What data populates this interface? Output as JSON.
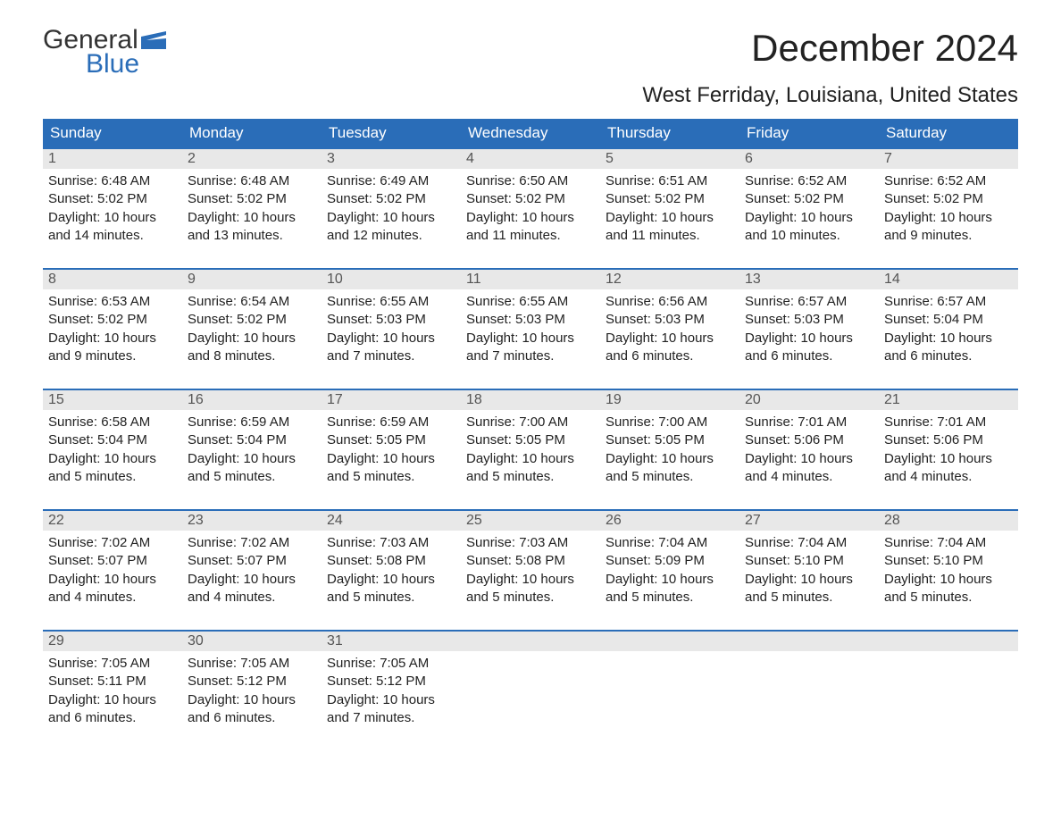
{
  "logo": {
    "word1": "General",
    "word2": "Blue",
    "icon_color": "#2a6db8"
  },
  "title": "December 2024",
  "location": "West Ferriday, Louisiana, United States",
  "colors": {
    "header_bg": "#2a6db8",
    "header_fg": "#ffffff",
    "daynum_bg": "#e8e8e8",
    "text": "#222222",
    "rule": "#2a6db8"
  },
  "day_headers": [
    "Sunday",
    "Monday",
    "Tuesday",
    "Wednesday",
    "Thursday",
    "Friday",
    "Saturday"
  ],
  "weeks": [
    [
      {
        "n": "1",
        "sr": "6:48 AM",
        "ss": "5:02 PM",
        "dl": "10 hours and 14 minutes."
      },
      {
        "n": "2",
        "sr": "6:48 AM",
        "ss": "5:02 PM",
        "dl": "10 hours and 13 minutes."
      },
      {
        "n": "3",
        "sr": "6:49 AM",
        "ss": "5:02 PM",
        "dl": "10 hours and 12 minutes."
      },
      {
        "n": "4",
        "sr": "6:50 AM",
        "ss": "5:02 PM",
        "dl": "10 hours and 11 minutes."
      },
      {
        "n": "5",
        "sr": "6:51 AM",
        "ss": "5:02 PM",
        "dl": "10 hours and 11 minutes."
      },
      {
        "n": "6",
        "sr": "6:52 AM",
        "ss": "5:02 PM",
        "dl": "10 hours and 10 minutes."
      },
      {
        "n": "7",
        "sr": "6:52 AM",
        "ss": "5:02 PM",
        "dl": "10 hours and 9 minutes."
      }
    ],
    [
      {
        "n": "8",
        "sr": "6:53 AM",
        "ss": "5:02 PM",
        "dl": "10 hours and 9 minutes."
      },
      {
        "n": "9",
        "sr": "6:54 AM",
        "ss": "5:02 PM",
        "dl": "10 hours and 8 minutes."
      },
      {
        "n": "10",
        "sr": "6:55 AM",
        "ss": "5:03 PM",
        "dl": "10 hours and 7 minutes."
      },
      {
        "n": "11",
        "sr": "6:55 AM",
        "ss": "5:03 PM",
        "dl": "10 hours and 7 minutes."
      },
      {
        "n": "12",
        "sr": "6:56 AM",
        "ss": "5:03 PM",
        "dl": "10 hours and 6 minutes."
      },
      {
        "n": "13",
        "sr": "6:57 AM",
        "ss": "5:03 PM",
        "dl": "10 hours and 6 minutes."
      },
      {
        "n": "14",
        "sr": "6:57 AM",
        "ss": "5:04 PM",
        "dl": "10 hours and 6 minutes."
      }
    ],
    [
      {
        "n": "15",
        "sr": "6:58 AM",
        "ss": "5:04 PM",
        "dl": "10 hours and 5 minutes."
      },
      {
        "n": "16",
        "sr": "6:59 AM",
        "ss": "5:04 PM",
        "dl": "10 hours and 5 minutes."
      },
      {
        "n": "17",
        "sr": "6:59 AM",
        "ss": "5:05 PM",
        "dl": "10 hours and 5 minutes."
      },
      {
        "n": "18",
        "sr": "7:00 AM",
        "ss": "5:05 PM",
        "dl": "10 hours and 5 minutes."
      },
      {
        "n": "19",
        "sr": "7:00 AM",
        "ss": "5:05 PM",
        "dl": "10 hours and 5 minutes."
      },
      {
        "n": "20",
        "sr": "7:01 AM",
        "ss": "5:06 PM",
        "dl": "10 hours and 4 minutes."
      },
      {
        "n": "21",
        "sr": "7:01 AM",
        "ss": "5:06 PM",
        "dl": "10 hours and 4 minutes."
      }
    ],
    [
      {
        "n": "22",
        "sr": "7:02 AM",
        "ss": "5:07 PM",
        "dl": "10 hours and 4 minutes."
      },
      {
        "n": "23",
        "sr": "7:02 AM",
        "ss": "5:07 PM",
        "dl": "10 hours and 4 minutes."
      },
      {
        "n": "24",
        "sr": "7:03 AM",
        "ss": "5:08 PM",
        "dl": "10 hours and 5 minutes."
      },
      {
        "n": "25",
        "sr": "7:03 AM",
        "ss": "5:08 PM",
        "dl": "10 hours and 5 minutes."
      },
      {
        "n": "26",
        "sr": "7:04 AM",
        "ss": "5:09 PM",
        "dl": "10 hours and 5 minutes."
      },
      {
        "n": "27",
        "sr": "7:04 AM",
        "ss": "5:10 PM",
        "dl": "10 hours and 5 minutes."
      },
      {
        "n": "28",
        "sr": "7:04 AM",
        "ss": "5:10 PM",
        "dl": "10 hours and 5 minutes."
      }
    ],
    [
      {
        "n": "29",
        "sr": "7:05 AM",
        "ss": "5:11 PM",
        "dl": "10 hours and 6 minutes."
      },
      {
        "n": "30",
        "sr": "7:05 AM",
        "ss": "5:12 PM",
        "dl": "10 hours and 6 minutes."
      },
      {
        "n": "31",
        "sr": "7:05 AM",
        "ss": "5:12 PM",
        "dl": "10 hours and 7 minutes."
      },
      null,
      null,
      null,
      null
    ]
  ],
  "labels": {
    "sunrise": "Sunrise:",
    "sunset": "Sunset:",
    "daylight": "Daylight:"
  }
}
